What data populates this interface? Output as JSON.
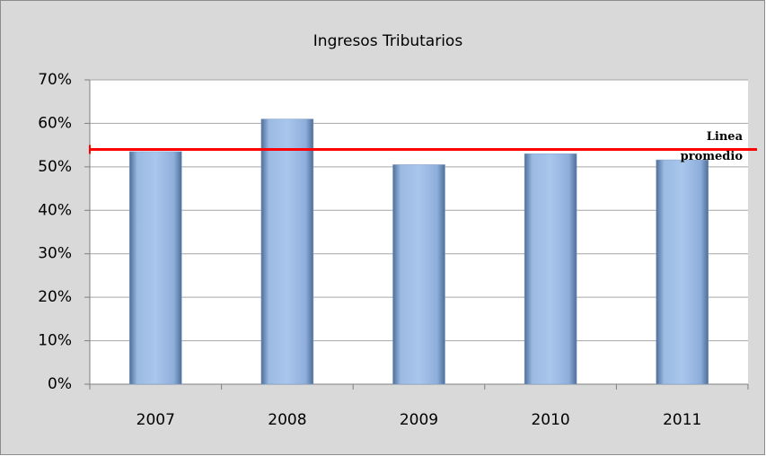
{
  "chart_data": {
    "type": "bar",
    "title": "Ingresos Tributarios",
    "categories": [
      "2007",
      "2008",
      "2009",
      "2010",
      "2011"
    ],
    "values": [
      53.5,
      61,
      50.5,
      53,
      51.6
    ],
    "color": "#95b3d7",
    "ylim": [
      0,
      70
    ],
    "yticks": [
      {
        "value": 0,
        "label": "0%"
      },
      {
        "value": 10,
        "label": "10%"
      },
      {
        "value": 20,
        "label": "20%"
      },
      {
        "value": 30,
        "label": "30%"
      },
      {
        "value": 40,
        "label": "40%"
      },
      {
        "value": 50,
        "label": "50%"
      },
      {
        "value": 60,
        "label": "60%"
      },
      {
        "value": 70,
        "label": "70%"
      }
    ],
    "grid": true,
    "reference_line": {
      "value": 54,
      "label": [
        "Linea",
        "promedio"
      ],
      "color": "#ff0000"
    }
  }
}
